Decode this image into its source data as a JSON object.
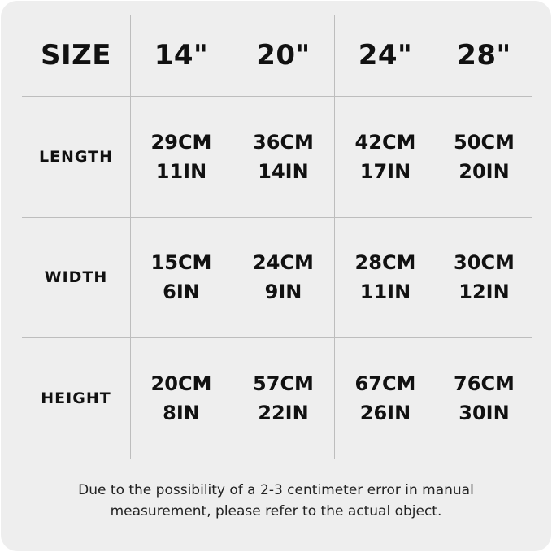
{
  "table": {
    "header": [
      "SIZE",
      "14\"",
      "20\"",
      "24\"",
      "28\""
    ],
    "rows": [
      {
        "label": "LENGTH",
        "values": [
          [
            "29CM",
            "11IN"
          ],
          [
            "36CM",
            "14IN"
          ],
          [
            "42CM",
            "17IN"
          ],
          [
            "50CM",
            "20IN"
          ]
        ]
      },
      {
        "label": "WIDTH",
        "values": [
          [
            "15CM",
            "6IN"
          ],
          [
            "24CM",
            "9IN"
          ],
          [
            "28CM",
            "11IN"
          ],
          [
            "30CM",
            "12IN"
          ]
        ]
      },
      {
        "label": "HEIGHT",
        "values": [
          [
            "20CM",
            "8IN"
          ],
          [
            "57CM",
            "22IN"
          ],
          [
            "67CM",
            "26IN"
          ],
          [
            "76CM",
            "30IN"
          ]
        ]
      }
    ]
  },
  "note": {
    "line1": "Due to the possibility of a 2-3 centimeter error in manual",
    "line2": "measurement, please refer to the actual object."
  },
  "colors": {
    "background": "#eeeeee",
    "text": "#111111",
    "grid": "#bdbdbd"
  }
}
